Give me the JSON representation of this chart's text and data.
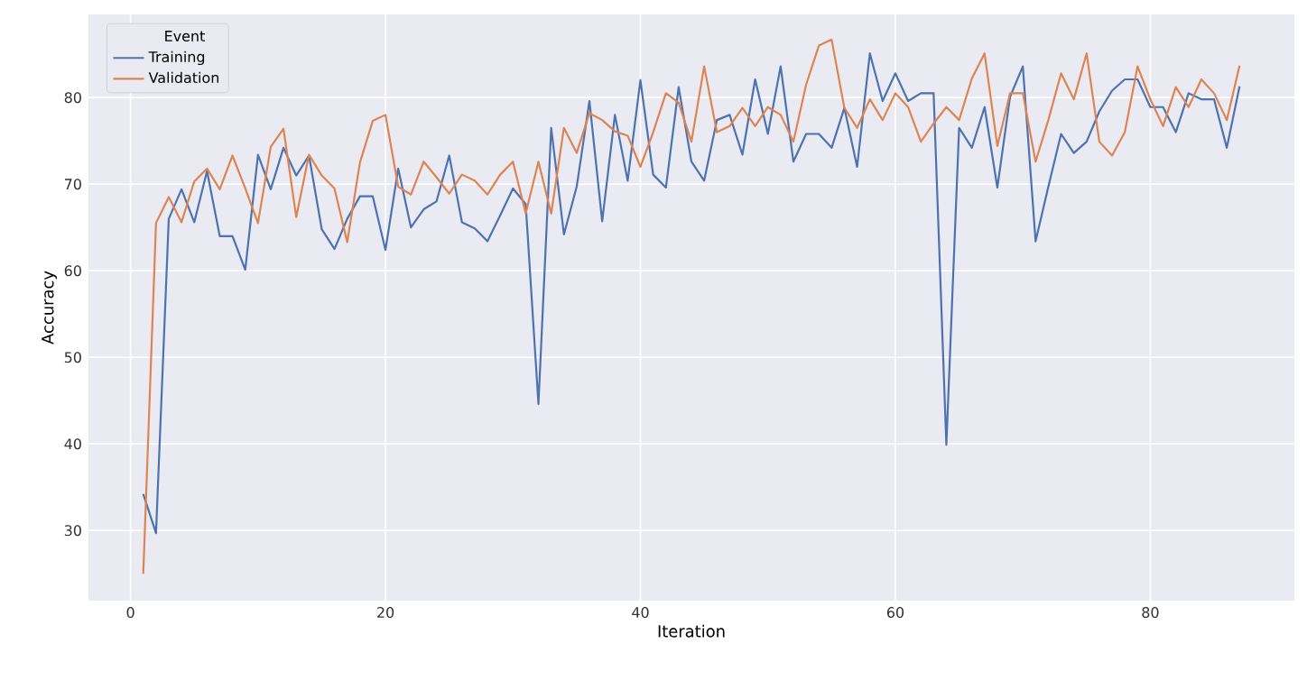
{
  "chart_data": {
    "type": "line",
    "xlabel": "Iteration",
    "ylabel": "Accuracy",
    "legend_title": "Event",
    "legend": "top left",
    "grid": true,
    "line_style": "solid",
    "xlim": [
      -3.3,
      91.3
    ],
    "ylim": [
      21.9,
      89.6
    ],
    "xticks": [
      0,
      20,
      40,
      60,
      80
    ],
    "yticks": [
      30,
      40,
      50,
      60,
      70,
      80
    ],
    "x": [
      1,
      2,
      3,
      4,
      5,
      6,
      7,
      8,
      9,
      10,
      11,
      12,
      13,
      14,
      15,
      16,
      17,
      18,
      19,
      20,
      21,
      22,
      23,
      24,
      25,
      26,
      27,
      28,
      29,
      30,
      31,
      32,
      33,
      34,
      35,
      36,
      37,
      38,
      39,
      40,
      41,
      42,
      43,
      44,
      45,
      46,
      47,
      48,
      49,
      50,
      51,
      52,
      53,
      54,
      55,
      56,
      57,
      58,
      59,
      60,
      61,
      62,
      63,
      64,
      65,
      66,
      67,
      68,
      69,
      70,
      71,
      72,
      73,
      74,
      75,
      76,
      77,
      78,
      79,
      80,
      81,
      82,
      83,
      84,
      85,
      86,
      87
    ],
    "series": [
      {
        "name": "Training",
        "color": "#4c72b0",
        "values": [
          34.2,
          29.7,
          66,
          69.4,
          65.6,
          71.5,
          64,
          64,
          60.1,
          73.4,
          69.4,
          74.2,
          71,
          73.3,
          64.8,
          62.5,
          66,
          68.6,
          68.6,
          62.4,
          71.8,
          65,
          67.1,
          68,
          73.3,
          65.6,
          64.9,
          63.4,
          66.4,
          69.5,
          67.7,
          44.6,
          76.5,
          64.2,
          69.7,
          79.6,
          65.7,
          78,
          70.4,
          82,
          71.1,
          69.6,
          81.2,
          72.6,
          70.4,
          77.4,
          78,
          73.4,
          82.1,
          75.8,
          83.6,
          72.6,
          75.8,
          75.8,
          74.2,
          78.8,
          72,
          85.1,
          79.6,
          82.8,
          79.6,
          80.5,
          80.5,
          39.9,
          76.5,
          74.2,
          78.9,
          69.6,
          80.1,
          83.6,
          63.4,
          69.7,
          75.8,
          73.6,
          74.9,
          78.4,
          80.8,
          82.1,
          82.1,
          78.9,
          78.9,
          76,
          80.5,
          79.8,
          79.8,
          74.2,
          81.3
        ]
      },
      {
        "name": "Validation",
        "color": "#dd8452",
        "values": [
          25,
          65.5,
          68.5,
          65.6,
          70.3,
          71.8,
          69.4,
          73.3,
          69.5,
          65.5,
          74.3,
          76.4,
          66.2,
          73.4,
          71,
          69.5,
          63.3,
          72.5,
          77.3,
          78,
          69.7,
          68.8,
          72.6,
          70.8,
          68.9,
          71.1,
          70.4,
          68.8,
          71.1,
          72.6,
          66.6,
          72.6,
          66.6,
          76.5,
          73.6,
          78.2,
          77.4,
          76.1,
          75.6,
          72,
          76,
          80.5,
          79.4,
          74.9,
          83.6,
          76,
          76.7,
          78.8,
          76.7,
          78.9,
          78,
          74.9,
          81.5,
          86,
          86.7,
          78.8,
          76.5,
          79.8,
          77.4,
          80.5,
          78.9,
          74.9,
          77,
          78.9,
          77.4,
          82.2,
          85.1,
          74.4,
          80.5,
          80.5,
          72.6,
          77.4,
          82.8,
          79.8,
          85.1,
          74.9,
          73.3,
          76,
          83.6,
          79.8,
          76.7,
          81.2,
          78.9,
          82.1,
          80.5,
          77.4,
          83.7
        ]
      }
    ]
  }
}
